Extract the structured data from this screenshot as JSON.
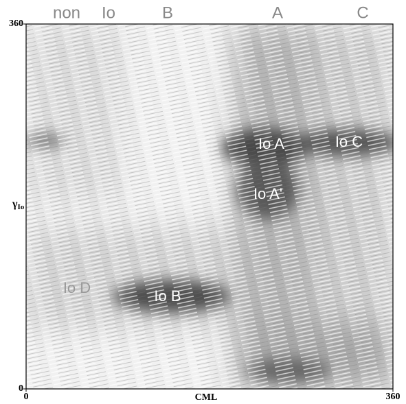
{
  "chart_data": {
    "type": "heatmap",
    "xlabel": "CML",
    "ylabel": {
      "symbol": "γ",
      "subscript": "Io"
    },
    "xlim": [
      0,
      360
    ],
    "ylim": [
      0,
      360
    ],
    "xticks": [
      0,
      360
    ],
    "yticks": [
      0,
      360
    ],
    "top_labels": [
      "non",
      "Io",
      "B",
      "A",
      "C"
    ],
    "annotations": [
      "Io A",
      "Io C",
      "Io A'",
      "Io D",
      "Io B"
    ]
  }
}
